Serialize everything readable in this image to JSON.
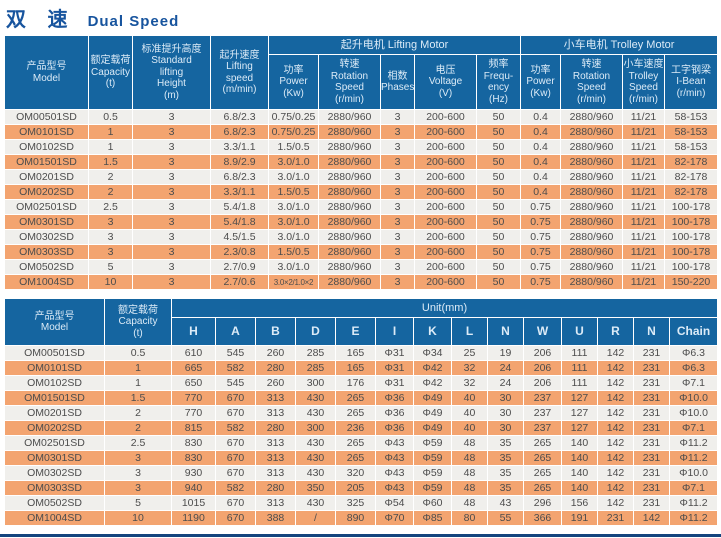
{
  "title": {
    "zh": "双 速",
    "en": "Dual Speed"
  },
  "colors": {
    "title_blue": "#17549e",
    "header_blue": "#1565a0",
    "header_text": "#dcebf7",
    "row_orange": "#f3a470",
    "row_light": "#f0efec",
    "cell_text": "#4d4d4d",
    "rule_blue": "#14447e"
  },
  "table1": {
    "groups": {
      "lifting_motor": "起升电机 Lifting Motor",
      "trolley_motor": "小车电机 Trolley Motor"
    },
    "headers": {
      "model": "产品型号\nModel",
      "capacity": "额定载荷\nCapacity\n(t)",
      "height": "标准提升高度\nStandard\nlifting\nHeight\n(m)",
      "lifting_speed": "起升速度\nLifting\nspeed\n(m/min)",
      "power": "功率\nPower\n(Kw)",
      "rotation": "转速\nRotation\nSpeed\n(r/min)",
      "phases": "相数\nPhases",
      "voltage": "电压\nVoltage\n(V)",
      "frequency": "频率\nFrequ-\nency\n(Hz)",
      "trolley_power": "功率\nPower\n(Kw)",
      "trolley_rotation": "转速\nRotation\nSpeed\n(r/min)",
      "trolley_speed": "小车速度\nTrolley\nSpeed\n(r/min)",
      "i_beam": "工字钢梁\nI-Bean\n(r/min)"
    },
    "rows": [
      [
        "OM00501SD",
        "0.5",
        "3",
        "6.8/2.3",
        "0.75/0.25",
        "2880/960",
        "3",
        "200-600",
        "50",
        "0.4",
        "2880/960",
        "11/21",
        "58-153"
      ],
      [
        "OM0101SD",
        "1",
        "3",
        "6.8/2.3",
        "0.75/0.25",
        "2880/960",
        "3",
        "200-600",
        "50",
        "0.4",
        "2880/960",
        "11/21",
        "58-153"
      ],
      [
        "OM0102SD",
        "1",
        "3",
        "3.3/1.1",
        "1.5/0.5",
        "2880/960",
        "3",
        "200-600",
        "50",
        "0.4",
        "2880/960",
        "11/21",
        "58-153"
      ],
      [
        "OM01501SD",
        "1.5",
        "3",
        "8.9/2.9",
        "3.0/1.0",
        "2880/960",
        "3",
        "200-600",
        "50",
        "0.4",
        "2880/960",
        "11/21",
        "82-178"
      ],
      [
        "OM0201SD",
        "2",
        "3",
        "6.8/2.3",
        "3.0/1.0",
        "2880/960",
        "3",
        "200-600",
        "50",
        "0.4",
        "2880/960",
        "11/21",
        "82-178"
      ],
      [
        "OM0202SD",
        "2",
        "3",
        "3.3/1.1",
        "1.5/0.5",
        "2880/960",
        "3",
        "200-600",
        "50",
        "0.4",
        "2880/960",
        "11/21",
        "82-178"
      ],
      [
        "OM02501SD",
        "2.5",
        "3",
        "5.4/1.8",
        "3.0/1.0",
        "2880/960",
        "3",
        "200-600",
        "50",
        "0.75",
        "2880/960",
        "11/21",
        "100-178"
      ],
      [
        "OM0301SD",
        "3",
        "3",
        "5.4/1.8",
        "3.0/1.0",
        "2880/960",
        "3",
        "200-600",
        "50",
        "0.75",
        "2880/960",
        "11/21",
        "100-178"
      ],
      [
        "OM0302SD",
        "3",
        "3",
        "4.5/1.5",
        "3.0/1.0",
        "2880/960",
        "3",
        "200-600",
        "50",
        "0.75",
        "2880/960",
        "11/21",
        "100-178"
      ],
      [
        "OM0303SD",
        "3",
        "3",
        "2.3/0.8",
        "1.5/0.5",
        "2880/960",
        "3",
        "200-600",
        "50",
        "0.75",
        "2880/960",
        "11/21",
        "100-178"
      ],
      [
        "OM0502SD",
        "5",
        "3",
        "2.7/0.9",
        "3.0/1.0",
        "2880/960",
        "3",
        "200-600",
        "50",
        "0.75",
        "2880/960",
        "11/21",
        "100-178"
      ],
      [
        "OM1004SD",
        "10",
        "3",
        "2.7/0.6",
        "3.0×2/1.0×2",
        "2880/960",
        "3",
        "200-600",
        "50",
        "0.75",
        "2880/960",
        "11/21",
        "150-220"
      ]
    ]
  },
  "table2": {
    "headers": {
      "model": "产品型号\nModel",
      "capacity": "额定载荷\nCapacity\n(t)",
      "unit_label": "Unit(mm)"
    },
    "letters": [
      "H",
      "A",
      "B",
      "D",
      "E",
      "I",
      "K",
      "L",
      "N",
      "W",
      "U",
      "R",
      "N",
      "Chain"
    ],
    "rows": [
      [
        "OM00501SD",
        "0.5",
        "610",
        "545",
        "260",
        "285",
        "165",
        "Φ31",
        "Φ34",
        "25",
        "19",
        "206",
        "111",
        "142",
        "231",
        "Φ6.3"
      ],
      [
        "OM0101SD",
        "1",
        "665",
        "582",
        "280",
        "285",
        "165",
        "Φ31",
        "Φ42",
        "32",
        "24",
        "206",
        "111",
        "142",
        "231",
        "Φ6.3"
      ],
      [
        "OM0102SD",
        "1",
        "650",
        "545",
        "260",
        "300",
        "176",
        "Φ31",
        "Φ42",
        "32",
        "24",
        "206",
        "111",
        "142",
        "231",
        "Φ7.1"
      ],
      [
        "OM01501SD",
        "1.5",
        "770",
        "670",
        "313",
        "430",
        "265",
        "Φ36",
        "Φ49",
        "40",
        "30",
        "237",
        "127",
        "142",
        "231",
        "Φ10.0"
      ],
      [
        "OM0201SD",
        "2",
        "770",
        "670",
        "313",
        "430",
        "265",
        "Φ36",
        "Φ49",
        "40",
        "30",
        "237",
        "127",
        "142",
        "231",
        "Φ10.0"
      ],
      [
        "OM0202SD",
        "2",
        "815",
        "582",
        "280",
        "300",
        "236",
        "Φ36",
        "Φ49",
        "40",
        "30",
        "237",
        "127",
        "142",
        "231",
        "Φ7.1"
      ],
      [
        "OM02501SD",
        "2.5",
        "830",
        "670",
        "313",
        "430",
        "265",
        "Φ43",
        "Φ59",
        "48",
        "35",
        "265",
        "140",
        "142",
        "231",
        "Φ11.2"
      ],
      [
        "OM0301SD",
        "3",
        "830",
        "670",
        "313",
        "430",
        "265",
        "Φ43",
        "Φ59",
        "48",
        "35",
        "265",
        "140",
        "142",
        "231",
        "Φ11.2"
      ],
      [
        "OM0302SD",
        "3",
        "930",
        "670",
        "313",
        "430",
        "320",
        "Φ43",
        "Φ59",
        "48",
        "35",
        "265",
        "140",
        "142",
        "231",
        "Φ10.0"
      ],
      [
        "OM0303SD",
        "3",
        "940",
        "582",
        "280",
        "350",
        "205",
        "Φ43",
        "Φ59",
        "48",
        "35",
        "265",
        "140",
        "142",
        "231",
        "Φ7.1"
      ],
      [
        "OM0502SD",
        "5",
        "1015",
        "670",
        "313",
        "430",
        "325",
        "Φ54",
        "Φ60",
        "48",
        "43",
        "296",
        "156",
        "142",
        "231",
        "Φ11.2"
      ],
      [
        "OM1004SD",
        "10",
        "1190",
        "670",
        "388",
        "/",
        "890",
        "Φ70",
        "Φ85",
        "80",
        "55",
        "366",
        "191",
        "231",
        "142",
        "Φ11.2"
      ]
    ]
  }
}
